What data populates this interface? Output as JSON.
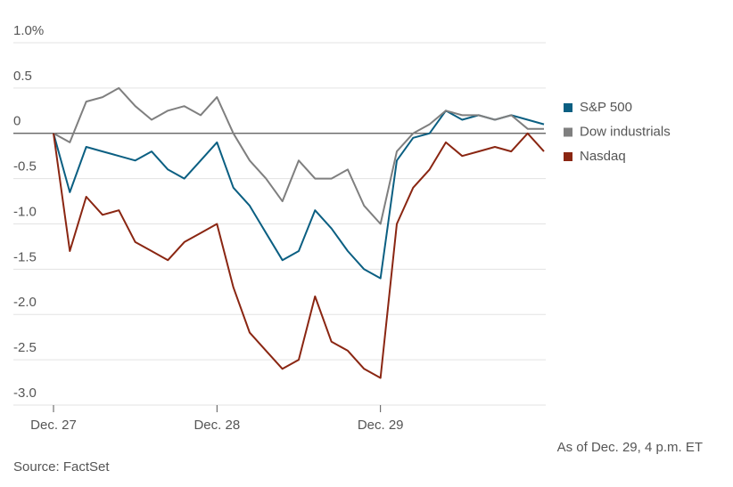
{
  "chart_data": {
    "type": "line",
    "x": [
      0,
      0.1,
      0.2,
      0.3,
      0.4,
      0.5,
      0.6,
      0.7,
      0.8,
      0.9,
      1.0,
      1.1,
      1.2,
      1.3,
      1.4,
      1.5,
      1.6,
      1.7,
      1.8,
      1.9,
      2.0,
      2.1,
      2.2,
      2.3,
      2.4,
      2.5,
      2.6,
      2.7,
      2.8,
      2.9,
      3.0
    ],
    "series": [
      {
        "name": "S&P 500",
        "color": "#0b5f82",
        "values": [
          0,
          -0.65,
          -0.15,
          -0.2,
          -0.25,
          -0.3,
          -0.2,
          -0.4,
          -0.5,
          -0.3,
          -0.1,
          -0.6,
          -0.8,
          -1.1,
          -1.4,
          -1.3,
          -0.85,
          -1.05,
          -1.3,
          -1.5,
          -1.6,
          -0.3,
          -0.05,
          0,
          0.25,
          0.15,
          0.2,
          0.15,
          0.2,
          0.15,
          0.1
        ]
      },
      {
        "name": "Dow industrials",
        "color": "#7f7f7f",
        "values": [
          0,
          -0.1,
          0.35,
          0.4,
          0.5,
          0.3,
          0.15,
          0.25,
          0.3,
          0.2,
          0.4,
          0,
          -0.3,
          -0.5,
          -0.75,
          -0.3,
          -0.5,
          -0.5,
          -0.4,
          -0.8,
          -1.0,
          -0.2,
          0,
          0.1,
          0.25,
          0.2,
          0.2,
          0.15,
          0.2,
          0.05,
          0.05
        ]
      },
      {
        "name": "Nasdaq",
        "color": "#8a2612",
        "values": [
          0,
          -1.3,
          -0.7,
          -0.9,
          -0.85,
          -1.2,
          -1.3,
          -1.4,
          -1.2,
          -1.1,
          -1.0,
          -1.7,
          -2.2,
          -2.4,
          -2.6,
          -2.5,
          -1.8,
          -2.3,
          -2.4,
          -2.6,
          -2.7,
          -1.0,
          -0.6,
          -0.4,
          -0.1,
          -0.25,
          -0.2,
          -0.15,
          -0.2,
          0,
          -0.2
        ]
      }
    ],
    "xlim": [
      0,
      3
    ],
    "xticks": [
      {
        "value": 0,
        "label": "Dec. 27"
      },
      {
        "value": 1,
        "label": "Dec. 28"
      },
      {
        "value": 2,
        "label": "Dec. 29"
      }
    ],
    "ylim": [
      -3,
      1
    ],
    "yticks": [
      {
        "value": 1,
        "label": "1.0%"
      },
      0.5,
      0,
      -0.5,
      {
        "value": -1,
        "label": "-1.0"
      },
      -1.5,
      {
        "value": -2,
        "label": "-2.0"
      },
      -2.5,
      {
        "value": -3,
        "label": "-3.0"
      }
    ],
    "grid": true,
    "annotations": [
      "As of Dec. 29, 4 p.m. ET",
      "Source: FactSet"
    ]
  }
}
